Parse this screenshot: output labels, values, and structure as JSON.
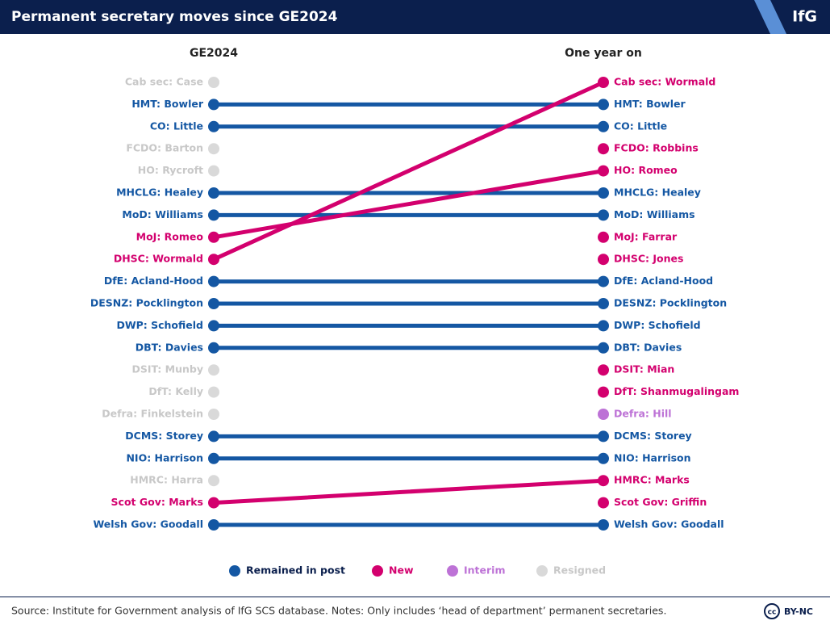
{
  "header": {
    "title": "Permanent secretary moves since GE2024",
    "logo": "IfG"
  },
  "columns": [
    "GE2024",
    "One year on"
  ],
  "legend": [
    {
      "label": "Remained in post",
      "color": "#1457a3"
    },
    {
      "label": "New",
      "color": "#d3006e"
    },
    {
      "label": "Interim",
      "color": "#bd72d6"
    },
    {
      "label": "Resigned",
      "color": "#d9d9d9"
    }
  ],
  "rows": [
    {
      "left": {
        "label": "Cab sec: Case",
        "status": 3
      },
      "right": {
        "label": "Cab sec: Wormald",
        "status": 1
      }
    },
    {
      "left": {
        "label": "HMT: Bowler",
        "status": 0
      },
      "right": {
        "label": "HMT: Bowler",
        "status": 0
      }
    },
    {
      "left": {
        "label": "CO: Little",
        "status": 0
      },
      "right": {
        "label": "CO: Little",
        "status": 0
      }
    },
    {
      "left": {
        "label": "FCDO: Barton",
        "status": 3
      },
      "right": {
        "label": "FCDO: Robbins",
        "status": 1
      }
    },
    {
      "left": {
        "label": "HO: Rycroft",
        "status": 3
      },
      "right": {
        "label": "HO: Romeo",
        "status": 1
      }
    },
    {
      "left": {
        "label": "MHCLG: Healey",
        "status": 0
      },
      "right": {
        "label": "MHCLG: Healey",
        "status": 0
      }
    },
    {
      "left": {
        "label": "MoD: Williams",
        "status": 0
      },
      "right": {
        "label": "MoD: Williams",
        "status": 0
      }
    },
    {
      "left": {
        "label": "MoJ: Romeo",
        "status": 1
      },
      "right": {
        "label": "MoJ: Farrar",
        "status": 1
      }
    },
    {
      "left": {
        "label": "DHSC: Wormald",
        "status": 1
      },
      "right": {
        "label": "DHSC: Jones",
        "status": 1
      }
    },
    {
      "left": {
        "label": "DfE: Acland-Hood",
        "status": 0
      },
      "right": {
        "label": "DfE: Acland-Hood",
        "status": 0
      }
    },
    {
      "left": {
        "label": "DESNZ: Pocklington",
        "status": 0
      },
      "right": {
        "label": "DESNZ: Pocklington",
        "status": 0
      }
    },
    {
      "left": {
        "label": "DWP: Schofield",
        "status": 0
      },
      "right": {
        "label": "DWP: Schofield",
        "status": 0
      }
    },
    {
      "left": {
        "label": "DBT: Davies",
        "status": 0
      },
      "right": {
        "label": "DBT: Davies",
        "status": 0
      }
    },
    {
      "left": {
        "label": "DSIT: Munby",
        "status": 3
      },
      "right": {
        "label": "DSIT: Mian",
        "status": 1
      }
    },
    {
      "left": {
        "label": "DfT: Kelly",
        "status": 3
      },
      "right": {
        "label": "DfT: Shanmugalingam",
        "status": 1
      }
    },
    {
      "left": {
        "label": "Defra: Finkelstein",
        "status": 3
      },
      "right": {
        "label": "Defra: Hill",
        "status": 2
      }
    },
    {
      "left": {
        "label": "DCMS: Storey",
        "status": 0
      },
      "right": {
        "label": "DCMS: Storey",
        "status": 0
      }
    },
    {
      "left": {
        "label": "NIO: Harrison",
        "status": 0
      },
      "right": {
        "label": "NIO: Harrison",
        "status": 0
      }
    },
    {
      "left": {
        "label": "HMRC: Harra",
        "status": 3
      },
      "right": {
        "label": "HMRC: Marks",
        "status": 1
      }
    },
    {
      "left": {
        "label": "Scot Gov: Marks",
        "status": 1
      },
      "right": {
        "label": "Scot Gov: Griffin",
        "status": 1
      }
    },
    {
      "left": {
        "label": "Welsh Gov: Goodall",
        "status": 0
      },
      "right": {
        "label": "Welsh Gov: Goodall",
        "status": 0
      }
    }
  ],
  "links": [
    [
      1,
      1
    ],
    [
      2,
      2
    ],
    [
      5,
      5
    ],
    [
      6,
      6
    ],
    [
      9,
      9
    ],
    [
      10,
      10
    ],
    [
      11,
      11
    ],
    [
      12,
      12
    ],
    [
      16,
      16
    ],
    [
      17,
      17
    ],
    [
      20,
      20
    ],
    [
      8,
      0
    ],
    [
      7,
      4
    ],
    [
      19,
      18
    ]
  ],
  "footer": {
    "source": "Source: Institute for Government analysis of IfG SCS database. Notes: Only includes ‘head of department’ permanent secretaries.",
    "licence": "BY-NC",
    "cc": "cc"
  }
}
